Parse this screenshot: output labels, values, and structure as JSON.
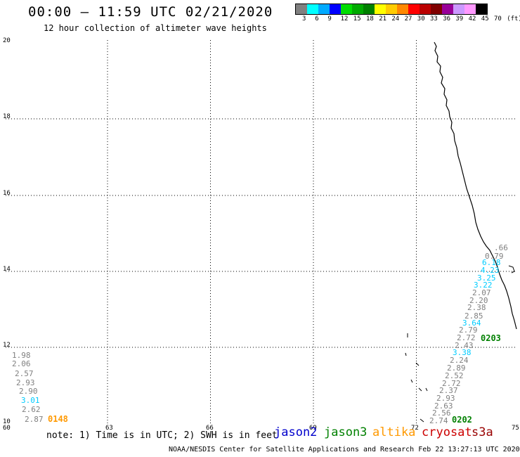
{
  "header": {
    "title": "00:00 – 11:59 UTC 02/21/2020",
    "subtitle": "12 hour collection of altimeter wave heights"
  },
  "legend": {
    "colors": [
      "#808080",
      "#00ffff",
      "#00aaff",
      "#0000ff",
      "#00dd00",
      "#00aa00",
      "#008000",
      "#ffff00",
      "#ffcc00",
      "#ff8800",
      "#ff0000",
      "#bb0000",
      "#800000",
      "#990099",
      "#cc99ff",
      "#ff99ff",
      "#000000"
    ],
    "labels": [
      "3",
      "6",
      "9",
      "12",
      "15",
      "18",
      "21",
      "24",
      "27",
      "30",
      "33",
      "36",
      "39",
      "42",
      "45",
      "70",
      "(ft)"
    ]
  },
  "map": {
    "lon_ticks": [
      "60",
      "63",
      "66",
      "69",
      "72",
      "75"
    ],
    "lat_ticks": [
      "10",
      "12",
      "14",
      "16",
      "18",
      "20"
    ],
    "wave_labels_left": [
      {
        "text": "1.98",
        "color": "#808080"
      },
      {
        "text": "2.06",
        "color": "#808080"
      },
      {
        "text": "2.57",
        "color": "#808080"
      },
      {
        "text": "2.93",
        "color": "#808080"
      },
      {
        "text": "2.90",
        "color": "#808080"
      },
      {
        "text": "3.01",
        "color": "#00ccff"
      },
      {
        "text": "2.62",
        "color": "#808080"
      },
      {
        "text": "2.87",
        "color": "#808080"
      }
    ],
    "pass_left": {
      "text": "0148",
      "color": "#ff9900"
    },
    "wave_labels_right": [
      {
        "text": ".66",
        "color": "#808080"
      },
      {
        "text": "0.79",
        "color": "#808080"
      },
      {
        "text": "6.18",
        "color": "#00ccff"
      },
      {
        "text": "4.23",
        "color": "#00ccff"
      },
      {
        "text": "3.25",
        "color": "#00ccff"
      },
      {
        "text": "3.22",
        "color": "#00ccff"
      },
      {
        "text": "2.07",
        "color": "#808080"
      },
      {
        "text": "2.20",
        "color": "#808080"
      },
      {
        "text": "2.38",
        "color": "#808080"
      },
      {
        "text": "2.85",
        "color": "#808080"
      },
      {
        "text": "3.64",
        "color": "#00ccff"
      },
      {
        "text": "2.79",
        "color": "#808080"
      },
      {
        "text": "2.72",
        "color": "#808080"
      },
      {
        "text": "2.43",
        "color": "#808080"
      },
      {
        "text": "3.38",
        "color": "#00ccff"
      },
      {
        "text": "2.24",
        "color": "#808080"
      },
      {
        "text": "2.89",
        "color": "#808080"
      },
      {
        "text": "2.52",
        "color": "#808080"
      },
      {
        "text": "2.72",
        "color": "#808080"
      },
      {
        "text": "2.37",
        "color": "#808080"
      },
      {
        "text": "2.93",
        "color": "#808080"
      },
      {
        "text": "2.63",
        "color": "#808080"
      },
      {
        "text": "2.56",
        "color": "#808080"
      },
      {
        "text": "2.74",
        "color": "#808080"
      }
    ],
    "pass_right_top": {
      "text": "0203",
      "color": "#008000"
    },
    "pass_right_bottom": {
      "text": "0202",
      "color": "#008000"
    }
  },
  "footer": {
    "note": "note: 1) Time is in UTC; 2) SWH is in feet",
    "satellites": [
      {
        "name": "jason2",
        "color": "#0000cc"
      },
      {
        "name": "jason3",
        "color": "#008000"
      },
      {
        "name": "altika",
        "color": "#ff9900"
      },
      {
        "name": "cryosat",
        "color": "#cc0000"
      },
      {
        "name": "s3a",
        "color": "#990000"
      }
    ],
    "credit": "NOAA/NESDIS Center for Satellite Applications and Research     Feb 22 13:27:13 UTC 2020"
  }
}
